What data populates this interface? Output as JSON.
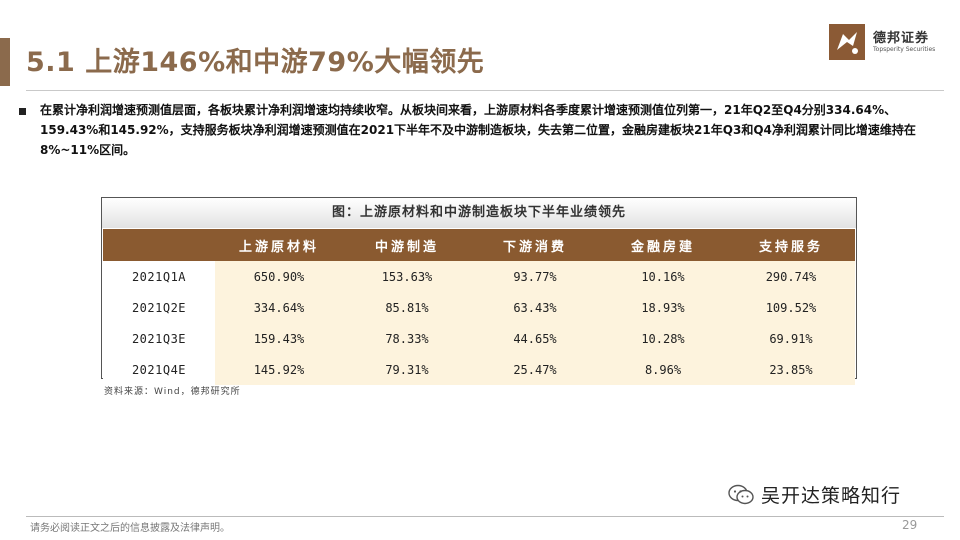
{
  "title": "5.1 上游146%和中游79%大幅领先",
  "logo": {
    "cn": "德邦证券",
    "en": "Topsperity Securities",
    "color": "#8b5a35"
  },
  "bullet": "在累计净利润增速预测值层面，各板块累计净利润增速均持续收窄。从板块间来看，上游原材料各季度累计增速预测值位列第一，21年Q2至Q4分别334.64%、159.43%和145.92%，支持服务板块净利润增速预测值在2021下半年不及中游制造板块，失去第二位置，金融房建板块21年Q3和Q4净利润累计同比增速维持在8%~11%区间。",
  "figure": {
    "title": "图：上游原材料和中游制造板块下半年业绩领先",
    "columns": [
      "上游原材料",
      "中游制造",
      "下游消费",
      "金融房建",
      "支持服务"
    ],
    "rows": [
      {
        "label": "2021Q1A",
        "values": [
          "650.90%",
          "153.63%",
          "93.77%",
          "10.16%",
          "290.74%"
        ]
      },
      {
        "label": "2021Q2E",
        "values": [
          "334.64%",
          "85.81%",
          "63.43%",
          "18.93%",
          "109.52%"
        ]
      },
      {
        "label": "2021Q3E",
        "values": [
          "159.43%",
          "78.33%",
          "44.65%",
          "10.28%",
          "69.91%"
        ]
      },
      {
        "label": "2021Q4E",
        "values": [
          "145.92%",
          "79.31%",
          "25.47%",
          "8.96%",
          "23.85%"
        ]
      }
    ],
    "source": "资料来源：Wind，德邦研究所",
    "header_color": "#8a5a30",
    "cell_color": "#fdf3dd"
  },
  "watermark": {
    "icon": "wechat-icon",
    "text": "吴开达策略知行"
  },
  "footer": {
    "disclaimer": "请务必阅读正文之后的信息披露及法律声明。",
    "page": "29"
  },
  "accent": "#8b6a4c"
}
